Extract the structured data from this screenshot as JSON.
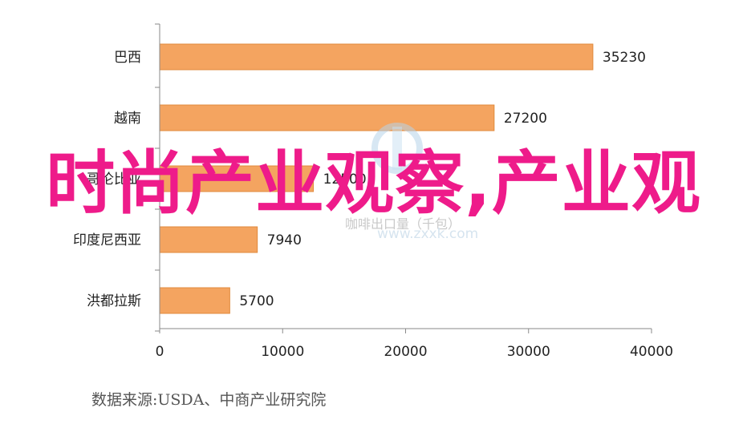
{
  "chart_data": {
    "type": "bar",
    "orientation": "horizontal",
    "categories": [
      "巴西",
      "越南",
      "哥伦比亚",
      "印度尼西亚",
      "洪都拉斯"
    ],
    "values": [
      35230,
      27200,
      12500,
      7940,
      5700
    ],
    "value_labels": [
      "35230",
      "27200",
      "12500",
      "7940",
      "5700"
    ],
    "xlim": [
      0,
      40000
    ],
    "xticks": [
      "0",
      "10000",
      "20000",
      "30000",
      "40000"
    ],
    "bar_color": "#f4a460",
    "bar_border": "#e08a3c",
    "grid": false,
    "legend": "none",
    "title": "",
    "xlabel": "",
    "ylabel": ""
  },
  "overlay": {
    "watermark_text": "时尚产业观察,产业观",
    "watermark_color": "#ee1b8a",
    "faint_watermark": "咖啡出口量（千包）",
    "faint_site": "www.zxxk.com"
  },
  "source_note": "数据来源:USDA、中商产业研究院"
}
